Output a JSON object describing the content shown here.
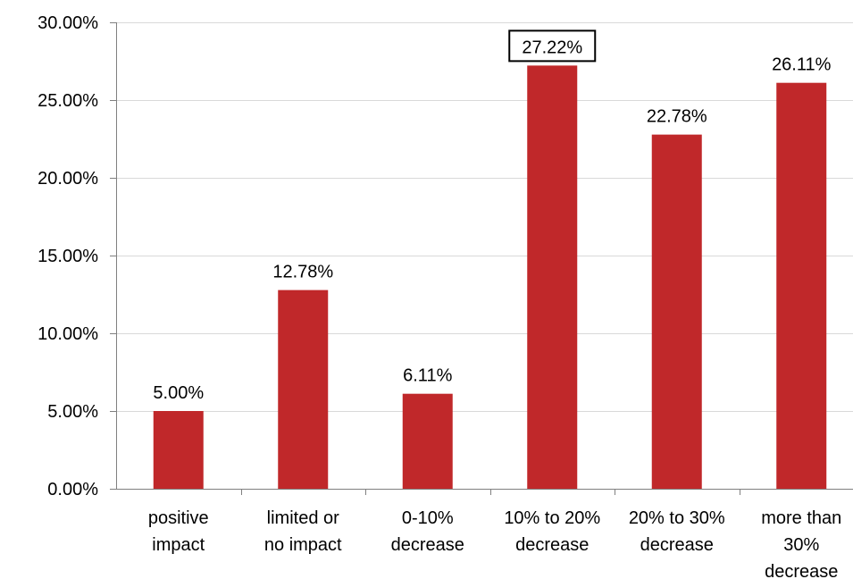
{
  "chart_data": {
    "type": "bar",
    "title": "",
    "xlabel": "",
    "ylabel": "",
    "categories": [
      [
        "positive",
        "impact"
      ],
      [
        "limited or",
        "no impact"
      ],
      [
        "0-10%",
        "decrease"
      ],
      [
        "10% to 20%",
        "decrease"
      ],
      [
        "20% to 30%",
        "decrease"
      ],
      [
        "more than",
        "30%",
        "decrease"
      ]
    ],
    "values": [
      5.0,
      12.78,
      6.11,
      27.22,
      22.78,
      26.11
    ],
    "value_labels": [
      "5.00%",
      "12.78%",
      "6.11%",
      "27.22%",
      "22.78%",
      "26.11%"
    ],
    "highlighted_label_index": 3,
    "ylim": [
      0,
      30
    ],
    "yticks": [
      0,
      5,
      10,
      15,
      20,
      25,
      30
    ],
    "ytick_labels": [
      "0.00%",
      "5.00%",
      "10.00%",
      "15.00%",
      "20.00%",
      "25.00%",
      "30.00%"
    ],
    "grid": true,
    "bar_color": "#C0282A",
    "grid_color": "#D9D9D9",
    "axis_color": "#808080"
  }
}
